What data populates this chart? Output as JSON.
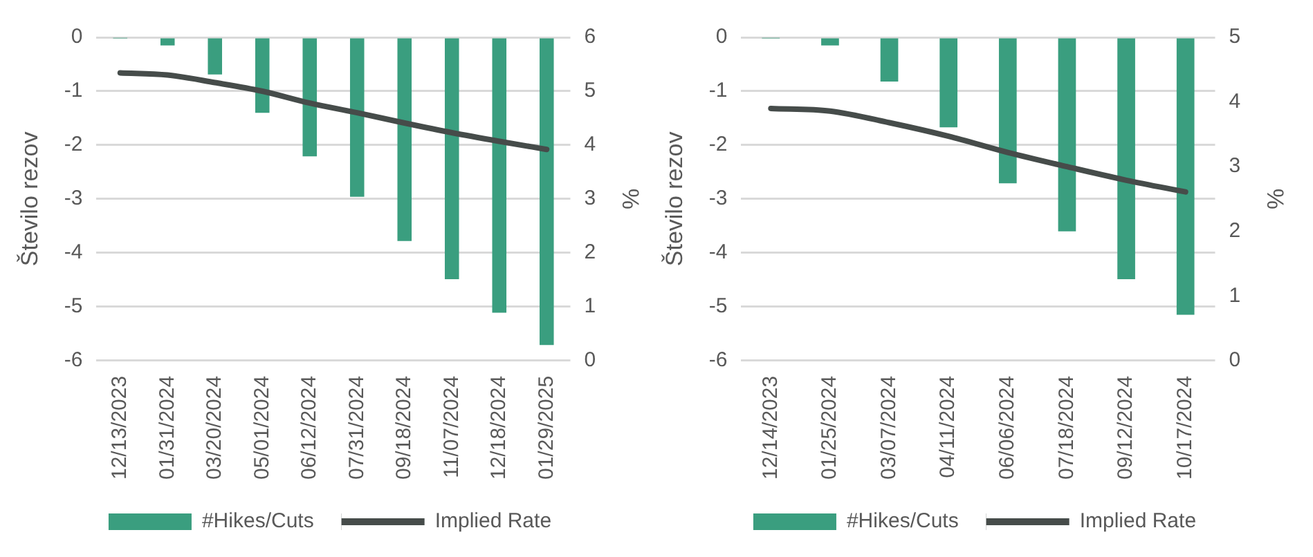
{
  "chart_data": [
    {
      "type": "bar",
      "ylabel": "Število rezov",
      "y2label": "%",
      "categories": [
        "12/13/2023",
        "01/31/2024",
        "03/20/2024",
        "05/01/2024",
        "06/12/2024",
        "07/31/2024",
        "09/18/2024",
        "11/07/2024",
        "12/18/2024",
        "01/29/2025"
      ],
      "series": [
        {
          "name": "#Hikes/Cuts",
          "color": "#3a9e7f",
          "values": [
            -0.01,
            -0.15,
            -0.69,
            -1.4,
            -2.21,
            -2.96,
            -3.78,
            -4.49,
            -5.11,
            -5.71
          ]
        },
        {
          "name": "Implied Rate",
          "type": "line",
          "axis": "y2",
          "color": "#464c4a",
          "values": [
            5.34,
            5.3,
            5.16,
            5.0,
            4.78,
            4.6,
            4.41,
            4.23,
            4.07,
            3.92
          ]
        }
      ],
      "ylim": [
        -6,
        0
      ],
      "yticks": [
        -6,
        -5,
        -4,
        -3,
        -2,
        -1,
        0
      ],
      "y2lim": [
        0,
        6
      ],
      "y2ticks": [
        0,
        1,
        2,
        3,
        4,
        5,
        6
      ],
      "grid": "y",
      "legend": "bottom",
      "marker": "none"
    },
    {
      "type": "bar",
      "ylabel": "Število rezov",
      "y2label": "%",
      "categories": [
        "12/14/2023",
        "01/25/2024",
        "03/07/2024",
        "04/11/2024",
        "06/06/2024",
        "07/18/2024",
        "09/12/2024",
        "10/17/2024"
      ],
      "series": [
        {
          "name": "#Hikes/Cuts",
          "color": "#3a9e7f",
          "values": [
            -0.01,
            -0.15,
            -0.82,
            -1.67,
            -2.71,
            -3.6,
            -4.49,
            -5.15
          ]
        },
        {
          "name": "Implied Rate",
          "type": "line",
          "axis": "y2",
          "color": "#464c4a",
          "values": [
            3.9,
            3.86,
            3.68,
            3.47,
            3.22,
            3.0,
            2.79,
            2.61
          ]
        }
      ],
      "ylim": [
        -6,
        0
      ],
      "yticks": [
        -6,
        -5,
        -4,
        -3,
        -2,
        -1,
        0
      ],
      "y2lim": [
        0,
        5
      ],
      "y2ticks": [
        0,
        1,
        2,
        3,
        4,
        5
      ],
      "grid": "y",
      "legend": "bottom",
      "marker": "none"
    }
  ]
}
